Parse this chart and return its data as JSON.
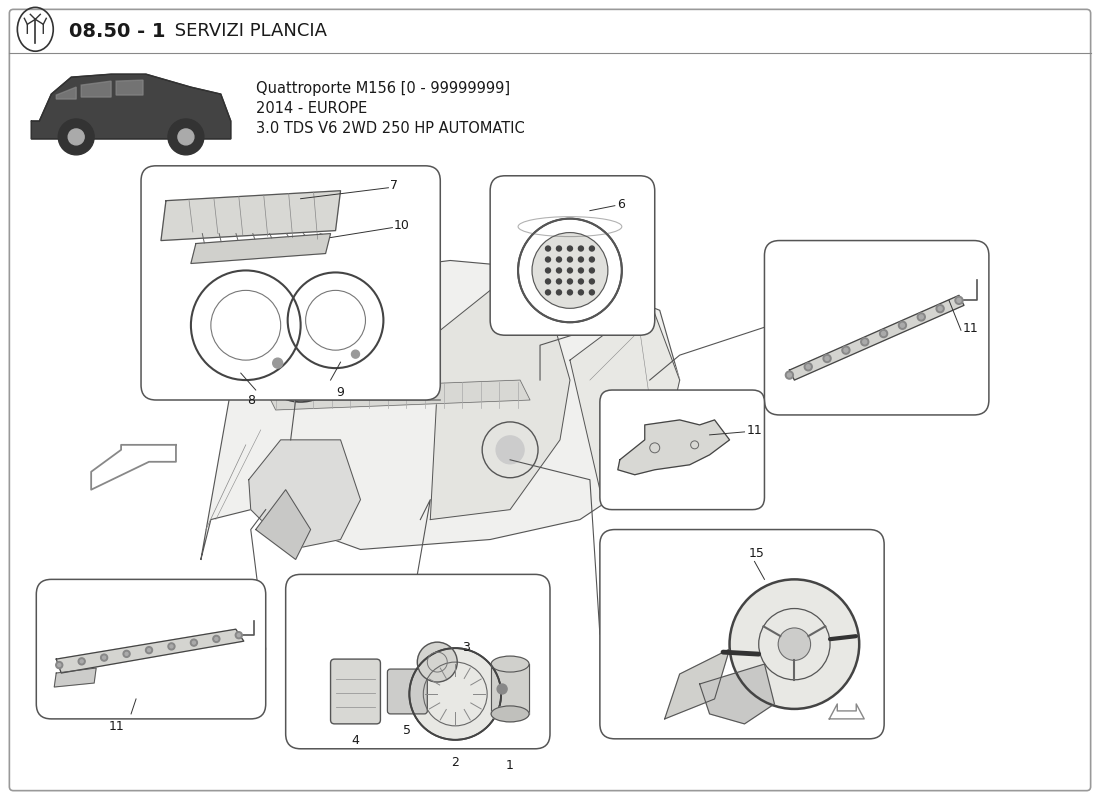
{
  "bg": "#ffffff",
  "fg": "#1a1a1a",
  "line": "#333333",
  "box_edge": "#555555",
  "title_bold": "08.50 - 1",
  "title_rest": " SERVIZI PLANCIA",
  "sub1": "Quattroporte M156 [0 - 99999999]",
  "sub2": "2014 - EUROPE",
  "sub3": "3.0 TDS V6 2WD 250 HP AUTOMATIC",
  "outer_border": "#aaaaaa"
}
